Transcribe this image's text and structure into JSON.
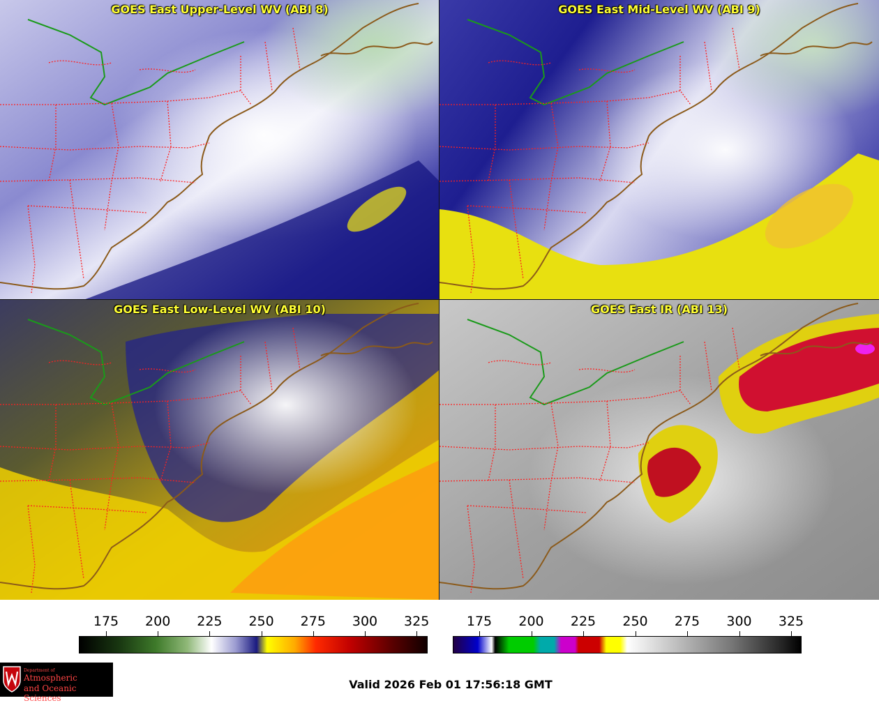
{
  "panels": [
    {
      "title": "GOES East Upper-Level WV (ABI 8)"
    },
    {
      "title": "GOES East Mid-Level WV (ABI 9)"
    },
    {
      "title": "GOES East Low-Level WV (ABI 10)"
    },
    {
      "title": "GOES East IR (ABI 13)"
    }
  ],
  "colorbars": {
    "wv": {
      "ticks": [
        "175",
        "200",
        "225",
        "250",
        "275",
        "300",
        "325"
      ]
    },
    "ir": {
      "ticks": [
        "175",
        "200",
        "225",
        "250",
        "275",
        "300",
        "325"
      ]
    }
  },
  "logo": {
    "dept": "Department of",
    "line1": "Atmospheric",
    "line2": "and Oceanic Sciences"
  },
  "valid_time": "Valid 2026 Feb 01 17:56:18 GMT",
  "colors": {
    "title": "#ffff33",
    "state_borders": "#ff2020",
    "coastline": "#8b5a1a",
    "intl_border": "#1a9a1a"
  }
}
